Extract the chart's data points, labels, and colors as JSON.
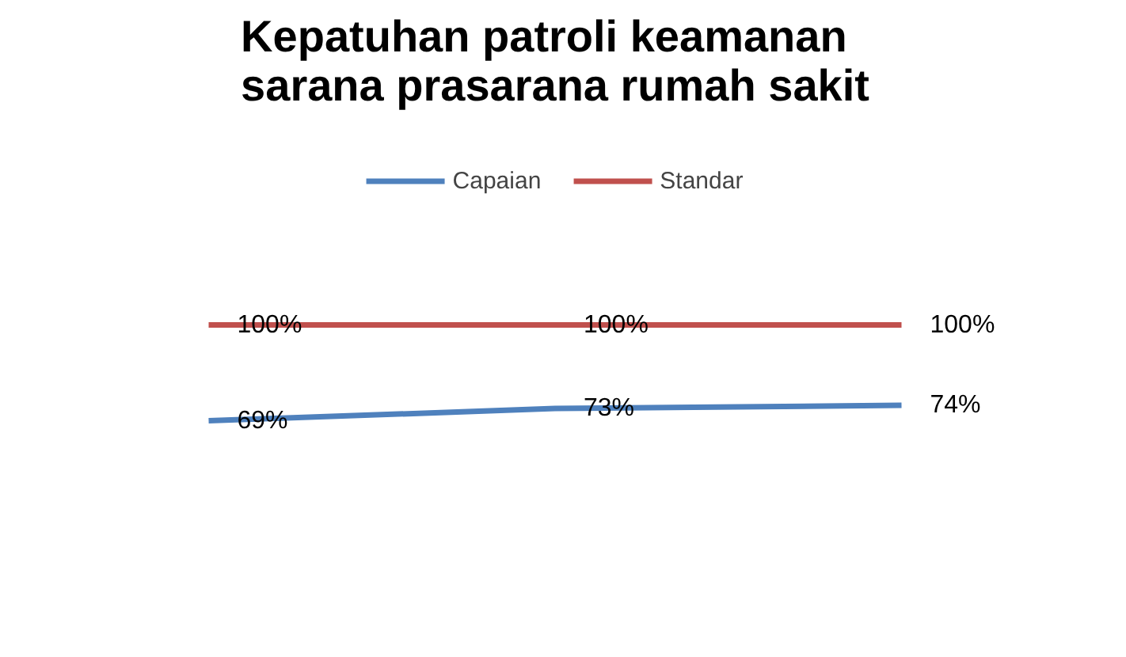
{
  "chart_data": {
    "type": "line",
    "title": "Kepatuhan patroli keamanan\nsarana prasarana rumah sakit",
    "categories": [
      null,
      null,
      null
    ],
    "series": [
      {
        "name": "Capaian",
        "color": "#4f81bd",
        "values": [
          69,
          73,
          74
        ],
        "value_labels": [
          "69%",
          "73%",
          "74%"
        ]
      },
      {
        "name": "Standar",
        "color": "#c0504d",
        "values": [
          100,
          100,
          100
        ],
        "value_labels": [
          "100%",
          "100%",
          "100%"
        ]
      }
    ],
    "tick_labels": false,
    "legend": "top",
    "line_style": "solid"
  }
}
